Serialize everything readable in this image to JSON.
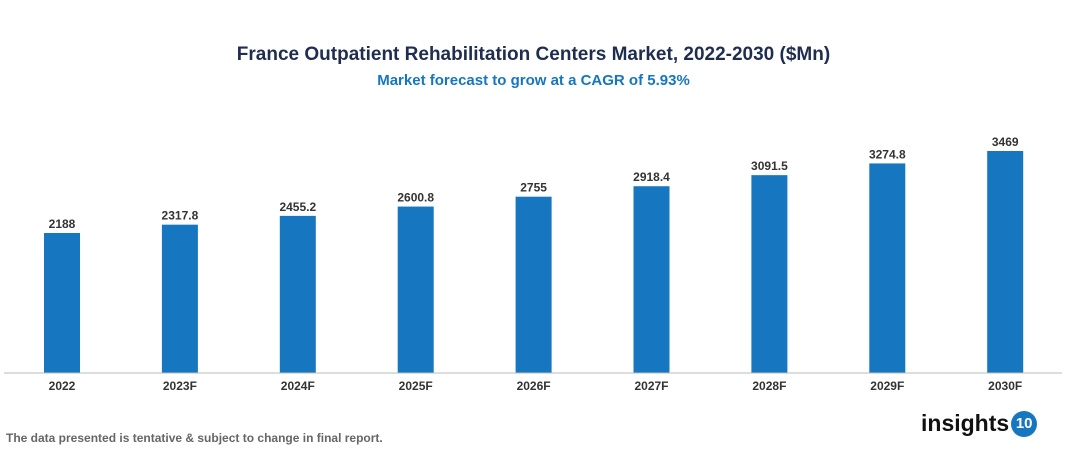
{
  "chart_data": {
    "type": "bar",
    "title": "France Outpatient Rehabilitation Centers Market, 2022-2030 ($Mn)",
    "subtitle": "Market forecast to grow at a CAGR of 5.93%",
    "categories": [
      "2022",
      "2023F",
      "2024F",
      "2025F",
      "2026F",
      "2027F",
      "2028F",
      "2029F",
      "2030F"
    ],
    "values": [
      2188,
      2317.8,
      2455.2,
      2600.8,
      2755,
      2918.4,
      3091.5,
      3274.8,
      3469
    ],
    "data_labels": [
      "2188",
      "2317.8",
      "2455.2",
      "2600.8",
      "2755",
      "2918.4",
      "3091.5",
      "3274.8",
      "3469"
    ],
    "xlabel": "",
    "ylabel": "",
    "ylim": [
      0,
      3500
    ],
    "grid": false,
    "bar_color": "#1676bf"
  },
  "footnote": "The data presented is tentative & subject to change in final report.",
  "logo": {
    "text": "insights",
    "badge": "10"
  }
}
